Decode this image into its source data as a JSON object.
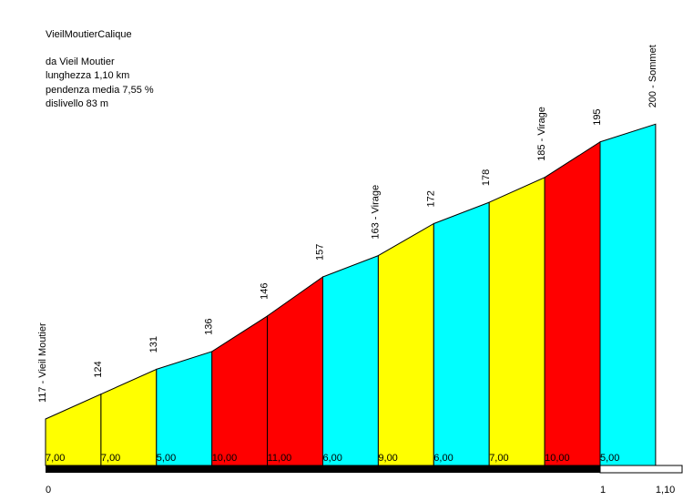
{
  "title": "VieilMoutierCalique",
  "info": {
    "origin": "da Vieil Moutier",
    "length": "lunghezza 1,10 km",
    "gradient": "pendenza media 7,55 %",
    "elevation_gain": "dislivello 83 m"
  },
  "colors": {
    "yellow": "#ffff00",
    "cyan": "#00ffff",
    "red": "#ff0000",
    "axis_bar": "#000000"
  },
  "chart_data": {
    "type": "area",
    "title": "VieilMoutierCalique",
    "xlim": [
      0,
      1.1
    ],
    "segment_km": 0.1,
    "km_ticks": [
      {
        "km": 0,
        "label": "0"
      },
      {
        "km": 1,
        "label": "1"
      },
      {
        "km": 1.1,
        "label": "1,10"
      }
    ],
    "altitude_labels": [
      "117 - Vieil Moutier",
      "124",
      "131",
      "136",
      "146",
      "157",
      "163 - Virage",
      "172",
      "178",
      "185 - Virage",
      "195",
      "200 - Sommet"
    ],
    "altitudes": [
      117,
      124,
      131,
      136,
      146,
      157,
      163,
      172,
      178,
      185,
      195,
      200
    ],
    "segments": [
      {
        "grade": "7,00",
        "color": "yellow"
      },
      {
        "grade": "7,00",
        "color": "yellow"
      },
      {
        "grade": "5,00",
        "color": "cyan"
      },
      {
        "grade": "10,00",
        "color": "red"
      },
      {
        "grade": "11,00",
        "color": "red"
      },
      {
        "grade": "6,00",
        "color": "cyan"
      },
      {
        "grade": "9,00",
        "color": "yellow"
      },
      {
        "grade": "6,00",
        "color": "cyan"
      },
      {
        "grade": "7,00",
        "color": "yellow"
      },
      {
        "grade": "10,00",
        "color": "red"
      },
      {
        "grade": "5,00",
        "color": "cyan"
      }
    ]
  }
}
